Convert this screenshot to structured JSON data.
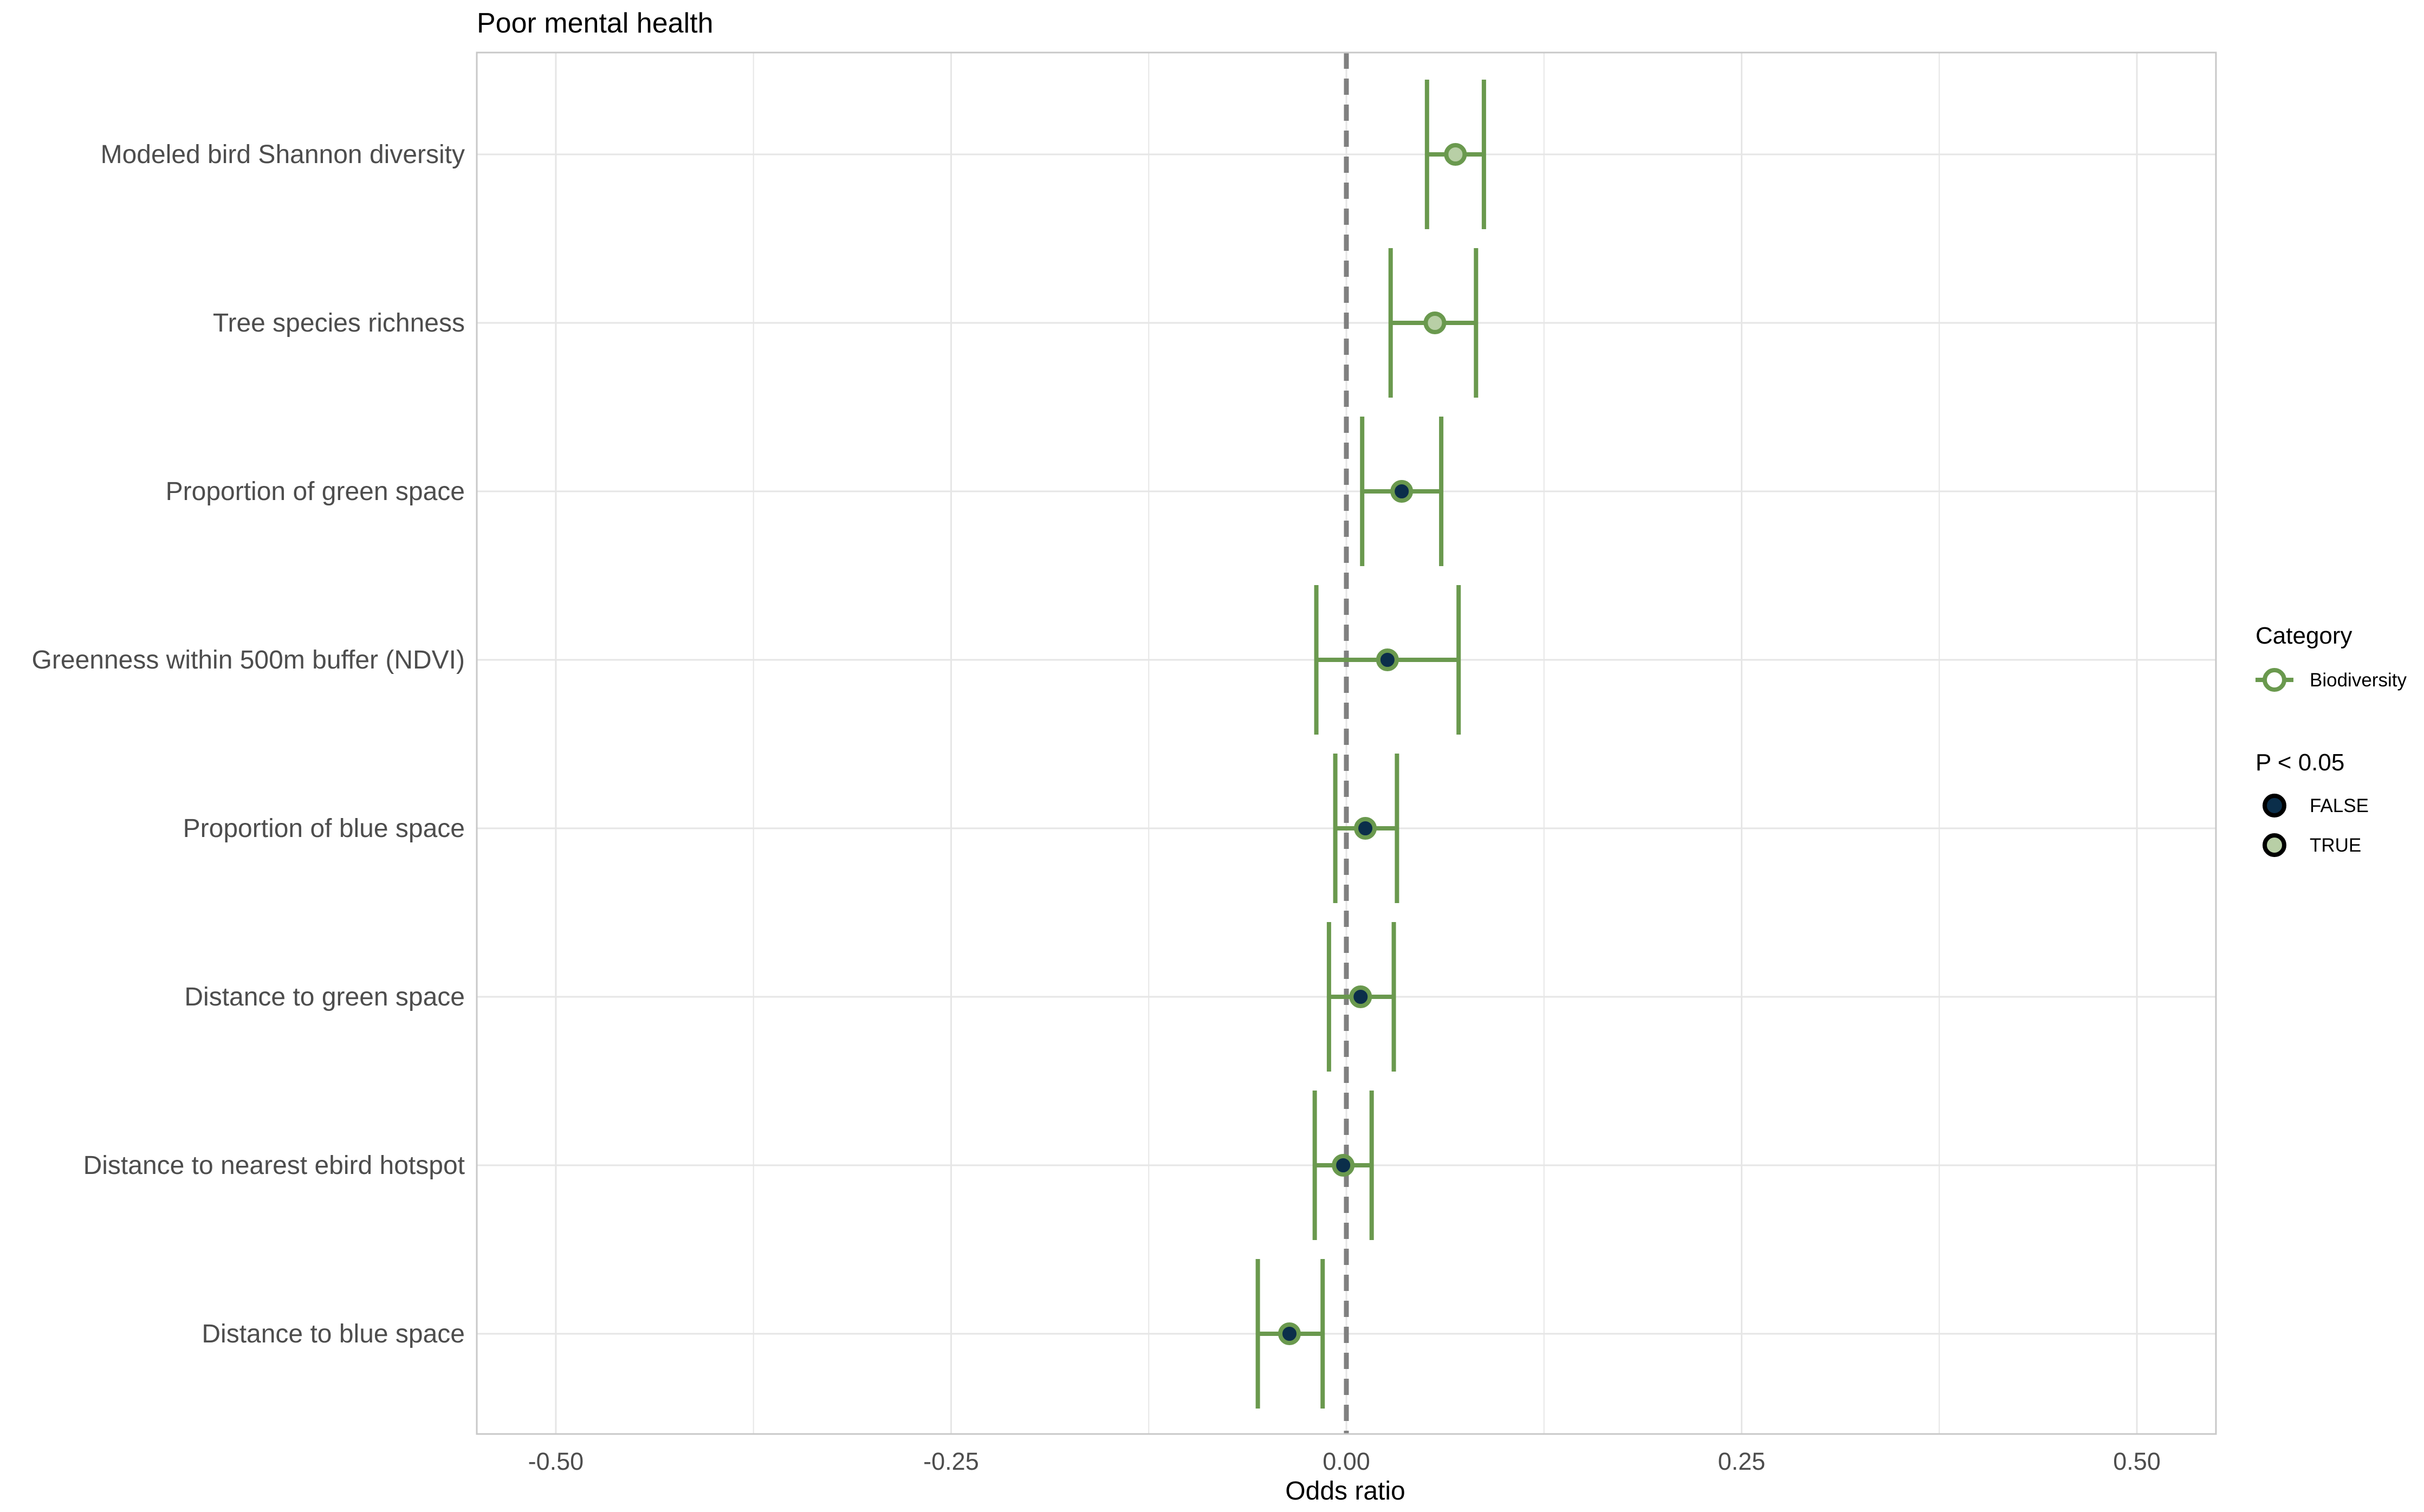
{
  "chart_data": {
    "type": "scatter",
    "title": "Poor mental health",
    "xlabel": "Odds ratio",
    "ylabel": "",
    "xlim": [
      -0.55,
      0.55
    ],
    "x_ticks": [
      -0.5,
      -0.25,
      0.0,
      0.25,
      0.5
    ],
    "x_tick_labels": [
      "-0.50",
      "-0.25",
      "0.00",
      "0.25",
      "0.50"
    ],
    "x_minor_ticks": [
      -0.375,
      -0.125,
      0.125,
      0.375
    ],
    "reference_line": 0,
    "grid": true,
    "legend_position": "right",
    "series": [
      {
        "name": "Biodiversity",
        "color": "#6a994e",
        "points": [
          {
            "label": "Modeled bird Shannon diversity",
            "estimate": 0.069,
            "lower": 0.051,
            "upper": 0.087,
            "significant": true
          },
          {
            "label": "Tree species richness",
            "estimate": 0.056,
            "lower": 0.028,
            "upper": 0.082,
            "significant": true
          },
          {
            "label": "Proportion of green space",
            "estimate": 0.035,
            "lower": 0.01,
            "upper": 0.06,
            "significant": false
          },
          {
            "label": "Greenness within 500m buffer (NDVI)",
            "estimate": 0.026,
            "lower": -0.019,
            "upper": 0.071,
            "significant": false
          },
          {
            "label": "Proportion of blue space",
            "estimate": 0.012,
            "lower": -0.007,
            "upper": 0.032,
            "significant": false
          },
          {
            "label": "Distance to green space",
            "estimate": 0.009,
            "lower": -0.011,
            "upper": 0.03,
            "significant": false
          },
          {
            "label": "Distance to nearest ebird hotspot",
            "estimate": -0.002,
            "lower": -0.02,
            "upper": 0.016,
            "significant": false
          },
          {
            "label": "Distance to blue space",
            "estimate": -0.036,
            "lower": -0.056,
            "upper": -0.015,
            "significant": false
          }
        ]
      }
    ],
    "legend": {
      "category_title": "Category",
      "category_items": [
        "Biodiversity"
      ],
      "significance_title": "P < 0.05",
      "significance_items": [
        {
          "label": "FALSE",
          "fill": "#0b2e4a"
        },
        {
          "label": "TRUE",
          "fill": "#b8cfa6"
        }
      ]
    },
    "colors": {
      "line": "#6a994e",
      "point_false_fill": "#0b2e4a",
      "point_true_fill": "#b8cfa6",
      "reference": "#808080",
      "grid": "#e6e6e6",
      "panel_border": "#c8c8c8"
    }
  }
}
